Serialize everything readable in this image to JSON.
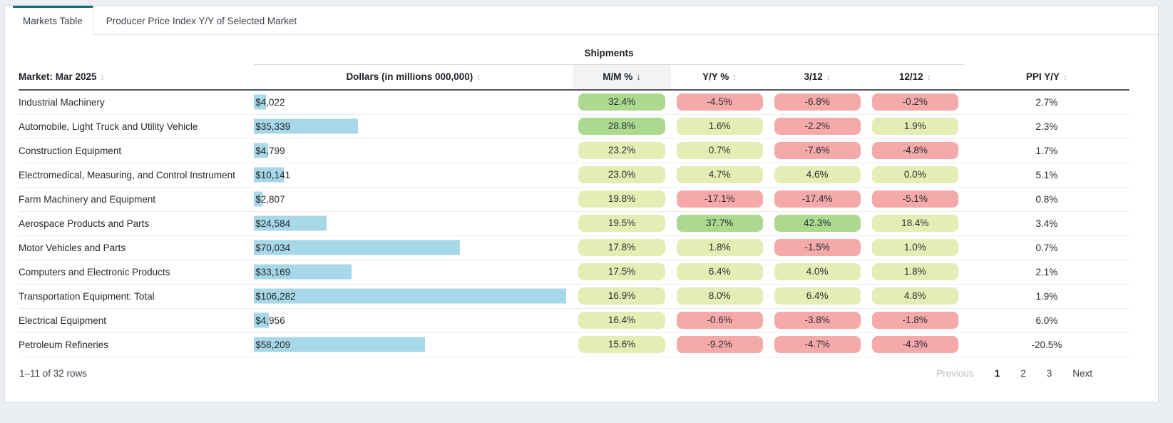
{
  "tabs": [
    {
      "label": "Markets Table",
      "active": true
    },
    {
      "label": "Producer Price Index Y/Y of Selected Market",
      "active": false
    }
  ],
  "table": {
    "group_label": "Shipments",
    "columns": [
      {
        "key": "market",
        "label": "Market: Mar 2025",
        "align": "left",
        "sort": "both"
      },
      {
        "key": "dollars",
        "label": "Dollars (in millions 000,000)",
        "align": "center",
        "sort": "both"
      },
      {
        "key": "mm",
        "label": "M/M %",
        "align": "center",
        "sort": "desc"
      },
      {
        "key": "yy",
        "label": "Y/Y %",
        "align": "center",
        "sort": "both"
      },
      {
        "key": "m312",
        "label": "3/12",
        "align": "center",
        "sort": "both"
      },
      {
        "key": "m1212",
        "label": "12/12",
        "align": "center",
        "sort": "both"
      },
      {
        "key": "ppi",
        "label": "PPI Y/Y",
        "align": "center",
        "sort": "both"
      }
    ],
    "bar_max": 106282,
    "rows": [
      {
        "market": "Industrial Machinery",
        "dollars": "$4,022",
        "dollars_value": 4022,
        "mm": "32.4%",
        "yy": "-4.5%",
        "m312": "-6.8%",
        "m1212": "-0.2%",
        "ppi": "2.7%"
      },
      {
        "market": "Automobile, Light Truck and Utility Vehicle",
        "dollars": "$35,339",
        "dollars_value": 35339,
        "mm": "28.8%",
        "yy": "1.6%",
        "m312": "-2.2%",
        "m1212": "1.9%",
        "ppi": "2.3%"
      },
      {
        "market": "Construction Equipment",
        "dollars": "$4,799",
        "dollars_value": 4799,
        "mm": "23.2%",
        "yy": "0.7%",
        "m312": "-7.6%",
        "m1212": "-4.8%",
        "ppi": "1.7%"
      },
      {
        "market": "Electromedical, Measuring, and Control Instrument",
        "dollars": "$10,141",
        "dollars_value": 10141,
        "mm": "23.0%",
        "yy": "4.7%",
        "m312": "4.6%",
        "m1212": "0.0%",
        "ppi": "5.1%"
      },
      {
        "market": "Farm Machinery and Equipment",
        "dollars": "$2,807",
        "dollars_value": 2807,
        "mm": "19.8%",
        "yy": "-17.1%",
        "m312": "-17.4%",
        "m1212": "-5.1%",
        "ppi": "0.8%"
      },
      {
        "market": "Aerospace Products and Parts",
        "dollars": "$24,584",
        "dollars_value": 24584,
        "mm": "19.5%",
        "yy": "37.7%",
        "m312": "42.3%",
        "m1212": "18.4%",
        "ppi": "3.4%"
      },
      {
        "market": "Motor Vehicles and Parts",
        "dollars": "$70,034",
        "dollars_value": 70034,
        "mm": "17.8%",
        "yy": "1.8%",
        "m312": "-1.5%",
        "m1212": "1.0%",
        "ppi": "0.7%"
      },
      {
        "market": "Computers and Electronic Products",
        "dollars": "$33,169",
        "dollars_value": 33169,
        "mm": "17.5%",
        "yy": "6.4%",
        "m312": "4.0%",
        "m1212": "1.8%",
        "ppi": "2.1%"
      },
      {
        "market": "Transportation Equipment: Total",
        "dollars": "$106,282",
        "dollars_value": 106282,
        "mm": "16.9%",
        "yy": "8.0%",
        "m312": "6.4%",
        "m1212": "4.8%",
        "ppi": "1.9%"
      },
      {
        "market": "Electrical Equipment",
        "dollars": "$4,956",
        "dollars_value": 4956,
        "mm": "16.4%",
        "yy": "-0.6%",
        "m312": "-3.8%",
        "m1212": "-1.8%",
        "ppi": "6.0%"
      },
      {
        "market": "Petroleum Refineries",
        "dollars": "$58,209",
        "dollars_value": 58209,
        "mm": "15.6%",
        "yy": "-9.2%",
        "m312": "-4.7%",
        "m1212": "-4.3%",
        "ppi": "-20.5%"
      }
    ]
  },
  "footer": {
    "range_label": "1–11 of 32 rows",
    "previous_label": "Previous",
    "pages": [
      {
        "label": "1",
        "current": true
      },
      {
        "label": "2",
        "current": false
      },
      {
        "label": "3",
        "current": false
      }
    ],
    "next_label": "Next"
  },
  "icons": {
    "sort-both": "↕",
    "sort-desc": "↓"
  },
  "colors": {
    "tab_accent_teal": "#1a6b7a",
    "bar_blue": "#a7d8e9",
    "pill_green_strong": "#abd98e",
    "pill_green_mild": "#e4edb3",
    "pill_red": "#f5a9a9",
    "header_underline": "#54585e",
    "sorted_header_bg": "#f2f3f5",
    "page_background": "#ebeef2"
  }
}
